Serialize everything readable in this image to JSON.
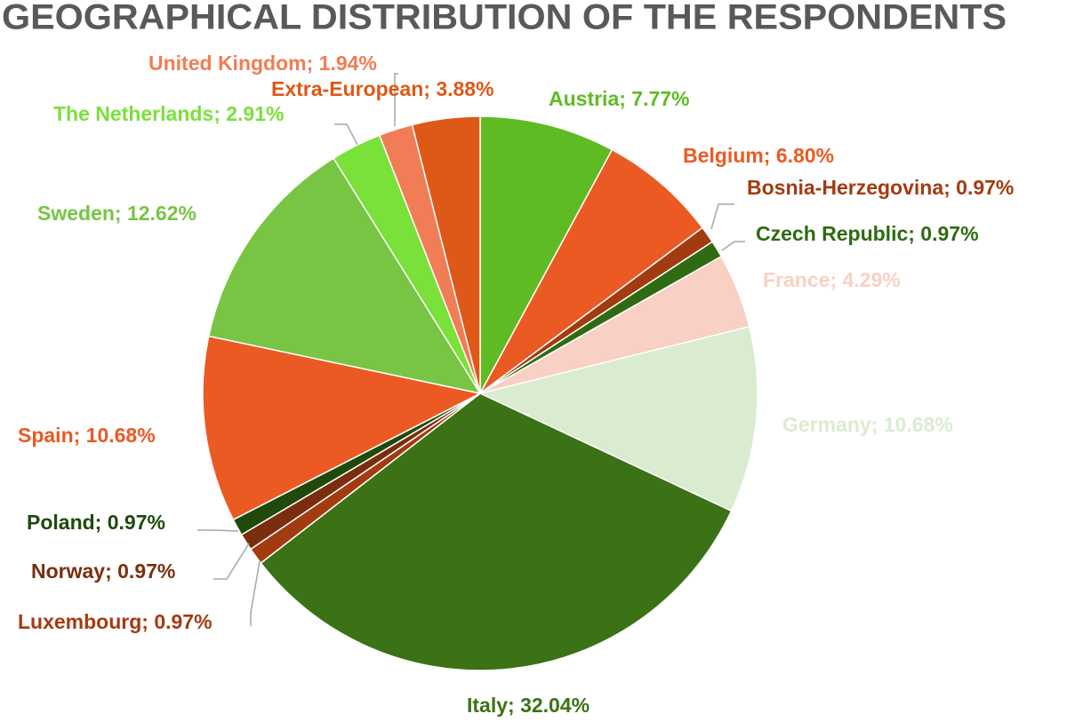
{
  "chart_data": {
    "type": "pie",
    "title": "GEOGRAPHICAL DISTRIBUTION OF THE RESPONDENTS",
    "values": [
      7.77,
      6.8,
      0.97,
      0.97,
      4.29,
      10.68,
      32.04,
      0.97,
      0.97,
      0.97,
      10.68,
      12.62,
      2.91,
      1.94,
      3.88
    ],
    "value_labels": [
      "Austria; 7.77%",
      "Belgium; 6.80%",
      "Bosnia-Herzegovina; 0.97%",
      "Czech Republic; 0.97%",
      "France; 4.29%",
      "Germany; 10.68%",
      "Italy; 32.04%",
      "Luxembourg; 0.97%",
      "Norway; 0.97%",
      "Poland; 0.97%",
      "Spain; 10.68%",
      "Sweden; 12.62%",
      "The Netherlands; 2.91%",
      "United Kingdom; 1.94%",
      "Extra-European; 3.88%"
    ],
    "colors": [
      "#5fbb23",
      "#eb5a22",
      "#a33b10",
      "#2e6b12",
      "#f8d0c4",
      "#d9ecd0",
      "#3b7216",
      "#a33b10",
      "#7a2e0e",
      "#1f4a0c",
      "#eb5a22",
      "#78c443",
      "#7ae03a",
      "#f07d55",
      "#de5817"
    ]
  }
}
